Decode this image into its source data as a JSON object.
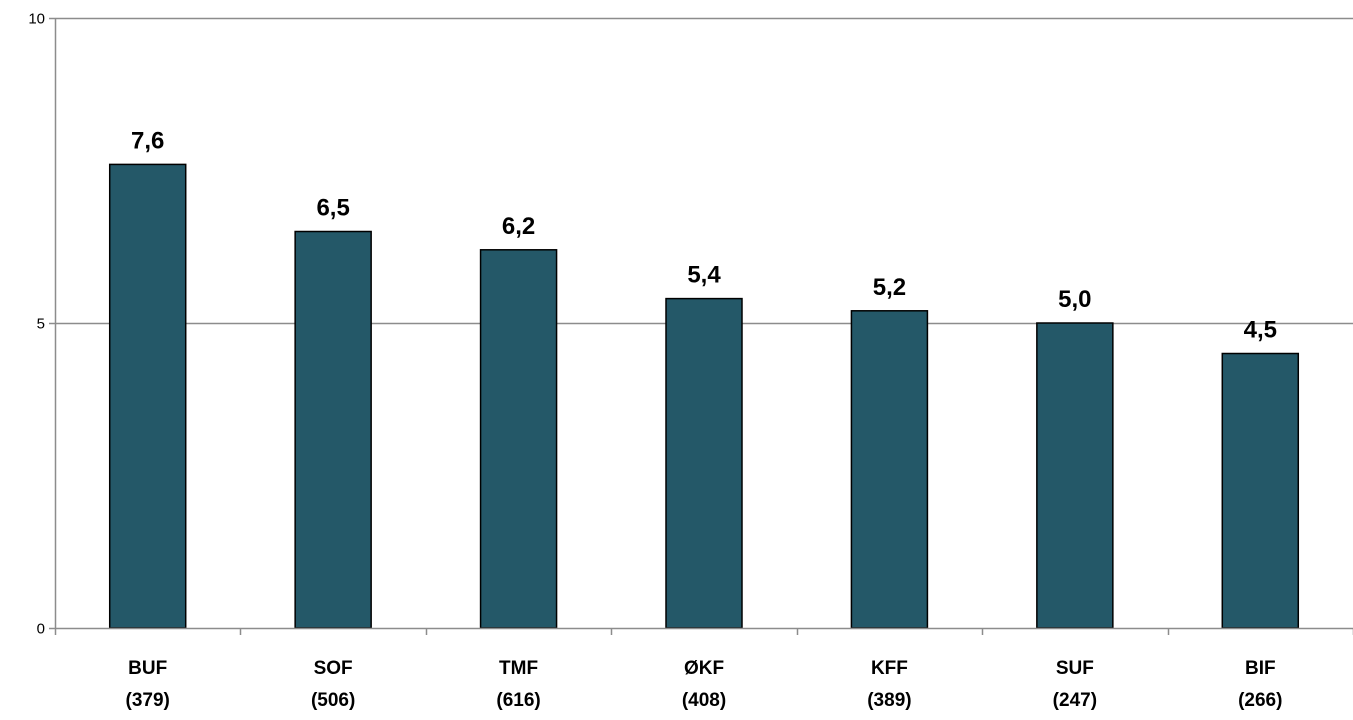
{
  "chart_data": {
    "type": "bar",
    "categories": [
      {
        "name": "BUF",
        "n": "(379)"
      },
      {
        "name": "SOF",
        "n": "(506)"
      },
      {
        "name": "TMF",
        "n": "(616)"
      },
      {
        "name": "ØKF",
        "n": "(408)"
      },
      {
        "name": "KFF",
        "n": "(389)"
      },
      {
        "name": "SUF",
        "n": "(247)"
      },
      {
        "name": "BIF",
        "n": "(266)"
      }
    ],
    "values": [
      7.6,
      6.5,
      6.2,
      5.4,
      5.2,
      5.0,
      4.5
    ],
    "value_labels": [
      "7,6",
      "6,5",
      "6,2",
      "5,4",
      "5,2",
      "5,0",
      "4,5"
    ],
    "ylim": [
      0,
      10
    ],
    "yticks": [
      0,
      5,
      10
    ],
    "ytick_labels": [
      "0",
      "5",
      "10"
    ],
    "grid": true,
    "title": "",
    "xlabel": "",
    "ylabel": "",
    "colors": {
      "bar_fill": "#245868",
      "bar_stroke": "#000000",
      "grid": "#8c8c8c",
      "axis": "#8c8c8c",
      "text": "#000000"
    }
  }
}
